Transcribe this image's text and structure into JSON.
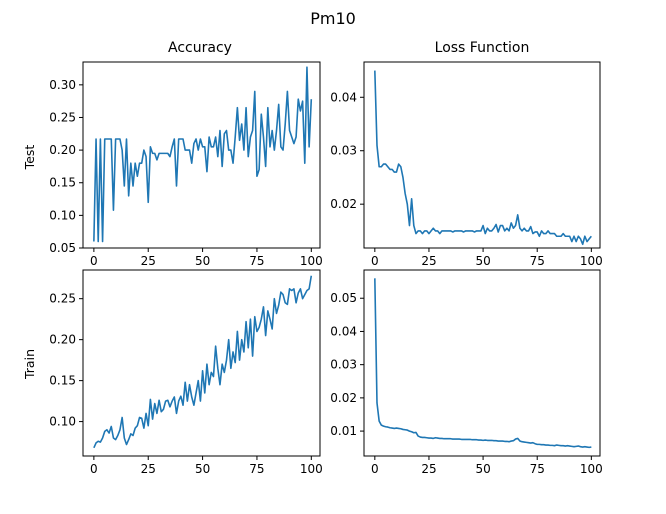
{
  "figure": {
    "suptitle": "Pm10",
    "line_color": "#1f77b4"
  },
  "chart_data": [
    {
      "id": "test-accuracy",
      "type": "line",
      "title": "Accuracy",
      "ylabel": "Test",
      "xlim": [
        -5,
        104
      ],
      "ylim": [
        0.05,
        0.335
      ],
      "xticks": [
        0,
        25,
        50,
        75,
        100
      ],
      "yticks": [
        0.05,
        0.1,
        0.15,
        0.2,
        0.25,
        0.3
      ],
      "ytick_labels": [
        "0.05",
        "0.10",
        "0.15",
        "0.20",
        "0.25",
        "0.30"
      ],
      "values": [
        0.06,
        0.217,
        0.06,
        0.217,
        0.06,
        0.217,
        0.217,
        0.217,
        0.217,
        0.108,
        0.217,
        0.217,
        0.217,
        0.2,
        0.145,
        0.217,
        0.13,
        0.18,
        0.145,
        0.18,
        0.16,
        0.18,
        0.18,
        0.2,
        0.19,
        0.12,
        0.205,
        0.195,
        0.195,
        0.185,
        0.195,
        0.195,
        0.195,
        0.195,
        0.195,
        0.19,
        0.205,
        0.217,
        0.145,
        0.217,
        0.217,
        0.217,
        0.2,
        0.2,
        0.2,
        0.18,
        0.21,
        0.217,
        0.2,
        0.217,
        0.205,
        0.205,
        0.167,
        0.22,
        0.205,
        0.205,
        0.22,
        0.19,
        0.23,
        0.175,
        0.225,
        0.23,
        0.2,
        0.2,
        0.18,
        0.22,
        0.265,
        0.215,
        0.24,
        0.2,
        0.265,
        0.19,
        0.22,
        0.23,
        0.29,
        0.16,
        0.17,
        0.255,
        0.22,
        0.175,
        0.265,
        0.205,
        0.23,
        0.2,
        0.23,
        0.27,
        0.205,
        0.2,
        0.24,
        0.29,
        0.23,
        0.22,
        0.21,
        0.22,
        0.278,
        0.26,
        0.275,
        0.18,
        0.327,
        0.205,
        0.278
      ]
    },
    {
      "id": "test-loss",
      "type": "line",
      "title": "Loss Function",
      "xlim": [
        -5,
        104
      ],
      "ylim": [
        0.0118,
        0.0466
      ],
      "xticks": [
        0,
        25,
        50,
        75,
        100
      ],
      "yticks": [
        0.02,
        0.03,
        0.04
      ],
      "ytick_labels": [
        "0.02",
        "0.03",
        "0.04"
      ],
      "values": [
        0.045,
        0.031,
        0.027,
        0.027,
        0.0275,
        0.0275,
        0.027,
        0.0265,
        0.0265,
        0.026,
        0.026,
        0.0275,
        0.027,
        0.025,
        0.022,
        0.02,
        0.016,
        0.021,
        0.016,
        0.0145,
        0.015,
        0.015,
        0.0145,
        0.015,
        0.015,
        0.0145,
        0.015,
        0.0155,
        0.015,
        0.015,
        0.0145,
        0.015,
        0.015,
        0.015,
        0.015,
        0.015,
        0.0148,
        0.015,
        0.015,
        0.015,
        0.015,
        0.0148,
        0.015,
        0.015,
        0.015,
        0.015,
        0.0148,
        0.015,
        0.015,
        0.015,
        0.016,
        0.0145,
        0.0155,
        0.015,
        0.015,
        0.0155,
        0.0162,
        0.0148,
        0.016,
        0.016,
        0.015,
        0.0155,
        0.015,
        0.0165,
        0.0155,
        0.016,
        0.018,
        0.0155,
        0.015,
        0.0155,
        0.015,
        0.015,
        0.0158,
        0.0145,
        0.0148,
        0.0148,
        0.014,
        0.015,
        0.0145,
        0.0145,
        0.015,
        0.0145,
        0.0145,
        0.0145,
        0.014,
        0.014,
        0.014,
        0.0145,
        0.014,
        0.014,
        0.014,
        0.013,
        0.014,
        0.013,
        0.014,
        0.0135,
        0.0125,
        0.014,
        0.013,
        0.0135,
        0.014
      ]
    },
    {
      "id": "train-accuracy",
      "type": "line",
      "ylabel": "Train",
      "xlim": [
        -5,
        104
      ],
      "ylim": [
        0.058,
        0.285
      ],
      "xticks": [
        0,
        25,
        50,
        75,
        100
      ],
      "xtick_labels": [
        "0",
        "25",
        "50",
        "75",
        "100"
      ],
      "yticks": [
        0.1,
        0.15,
        0.2,
        0.25
      ],
      "ytick_labels": [
        "0.10",
        "0.15",
        "0.20",
        "0.25"
      ],
      "values": [
        0.068,
        0.074,
        0.076,
        0.075,
        0.08,
        0.088,
        0.09,
        0.086,
        0.094,
        0.08,
        0.078,
        0.083,
        0.09,
        0.105,
        0.08,
        0.072,
        0.078,
        0.085,
        0.083,
        0.092,
        0.095,
        0.105,
        0.104,
        0.092,
        0.11,
        0.095,
        0.127,
        0.103,
        0.122,
        0.11,
        0.126,
        0.112,
        0.115,
        0.125,
        0.126,
        0.118,
        0.125,
        0.13,
        0.11,
        0.125,
        0.131,
        0.12,
        0.148,
        0.125,
        0.145,
        0.13,
        0.12,
        0.135,
        0.15,
        0.125,
        0.162,
        0.135,
        0.17,
        0.145,
        0.16,
        0.155,
        0.192,
        0.165,
        0.145,
        0.17,
        0.16,
        0.175,
        0.2,
        0.165,
        0.185,
        0.172,
        0.21,
        0.175,
        0.2,
        0.185,
        0.222,
        0.19,
        0.225,
        0.18,
        0.228,
        0.21,
        0.215,
        0.225,
        0.24,
        0.205,
        0.235,
        0.225,
        0.213,
        0.25,
        0.232,
        0.242,
        0.258,
        0.255,
        0.245,
        0.243,
        0.262,
        0.26,
        0.262,
        0.245,
        0.257,
        0.262,
        0.25,
        0.255,
        0.26,
        0.262,
        0.278
      ]
    },
    {
      "id": "train-loss",
      "type": "line",
      "xlim": [
        -5,
        104
      ],
      "ylim": [
        0.0025,
        0.0585
      ],
      "xticks": [
        0,
        25,
        50,
        75,
        100
      ],
      "xtick_labels": [
        "0",
        "25",
        "50",
        "75",
        "100"
      ],
      "yticks": [
        0.01,
        0.02,
        0.03,
        0.04,
        0.05
      ],
      "ytick_labels": [
        "0.01",
        "0.02",
        "0.03",
        "0.04",
        "0.05"
      ],
      "values": [
        0.056,
        0.0185,
        0.013,
        0.0118,
        0.0115,
        0.0113,
        0.0112,
        0.011,
        0.0109,
        0.0108,
        0.0109,
        0.0108,
        0.0107,
        0.0105,
        0.0104,
        0.0103,
        0.01,
        0.0098,
        0.0095,
        0.0096,
        0.0085,
        0.0082,
        0.0081,
        0.0081,
        0.008,
        0.0079,
        0.0079,
        0.0078,
        0.008,
        0.0079,
        0.0078,
        0.0078,
        0.0077,
        0.0077,
        0.0077,
        0.0077,
        0.0076,
        0.0076,
        0.0076,
        0.0076,
        0.0075,
        0.0075,
        0.0075,
        0.0075,
        0.0075,
        0.0074,
        0.0074,
        0.0074,
        0.0073,
        0.0073,
        0.0072,
        0.0073,
        0.0072,
        0.0072,
        0.0072,
        0.0071,
        0.0071,
        0.007,
        0.007,
        0.007,
        0.0069,
        0.0069,
        0.0068,
        0.007,
        0.0071,
        0.0076,
        0.0078,
        0.007,
        0.0068,
        0.0067,
        0.0066,
        0.0065,
        0.0064,
        0.0065,
        0.0062,
        0.006,
        0.006,
        0.0059,
        0.0059,
        0.0058,
        0.0058,
        0.0057,
        0.0057,
        0.0056,
        0.0058,
        0.0057,
        0.0056,
        0.0056,
        0.0055,
        0.0056,
        0.0055,
        0.0054,
        0.0053,
        0.0054,
        0.0055,
        0.0053,
        0.0052,
        0.0053,
        0.0052,
        0.0051,
        0.0052
      ]
    }
  ]
}
